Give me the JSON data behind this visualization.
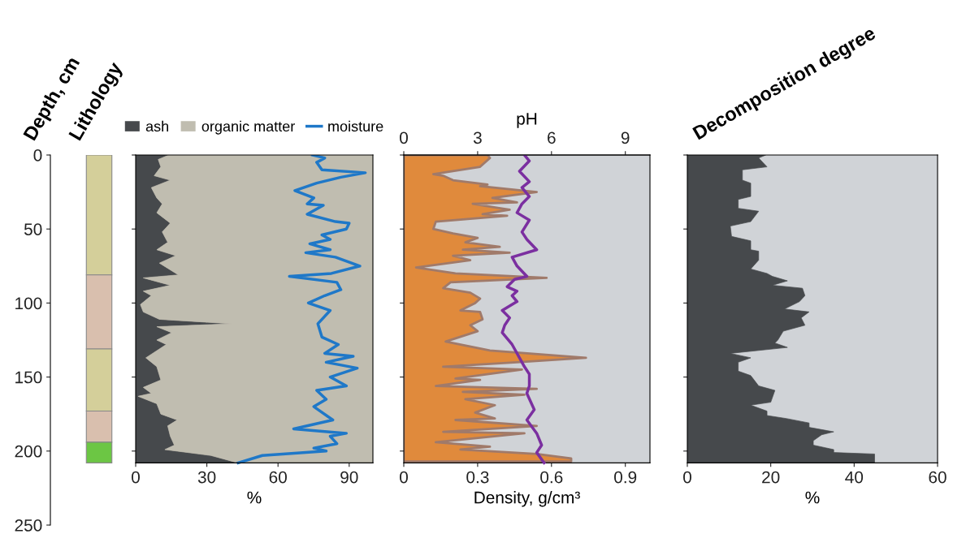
{
  "chart_data": [
    {
      "type": "bar",
      "stacked": true,
      "title": "Lithology",
      "ylabel": "Depth, cm",
      "categories": [
        null
      ],
      "ylim": [
        250,
        0
      ],
      "yticks": [
        0,
        50,
        100,
        150,
        200,
        250
      ],
      "series": [
        {
          "color": "#d4cf9a",
          "values": [
            81
          ]
        },
        {
          "color": "#d9bfae",
          "values": [
            50
          ]
        },
        {
          "color": "#d4cf9a",
          "values": [
            42
          ]
        },
        {
          "color": "#d9bfae",
          "values": [
            21
          ]
        },
        {
          "color": "#6cc644",
          "values": [
            14
          ]
        }
      ]
    },
    {
      "type": "area",
      "orientation": "horizontal",
      "stacked": true,
      "xlabel": "%",
      "xlim": [
        0,
        100
      ],
      "xticks": [
        0,
        30,
        60,
        90
      ],
      "ylim": [
        250,
        0
      ],
      "yticks": [
        {
          "value": 0,
          "label": null
        },
        {
          "value": 50,
          "label": null
        },
        {
          "value": 100,
          "label": null
        },
        {
          "value": 150,
          "label": null
        },
        {
          "value": 200,
          "label": null
        }
      ],
      "tick_labels": "x",
      "legend": "top",
      "series": [
        {
          "name": "ash",
          "color": "#46494c",
          "x": [
            0,
            3,
            8,
            14,
            17,
            22,
            29,
            33,
            39,
            46,
            52,
            59,
            64,
            68,
            73,
            81,
            83,
            88,
            92,
            95,
            101,
            106,
            111,
            114,
            116,
            120,
            125,
            128,
            137,
            143,
            152,
            157,
            161,
            163,
            168,
            175,
            179,
            183,
            190,
            196,
            199,
            203,
            208
          ],
          "values": [
            14,
            9.5,
            10.6,
            7.8,
            14.6,
            6.6,
            8.9,
            11.2,
            8.9,
            14.6,
            11.2,
            13.5,
            8.9,
            16.9,
            10,
            18,
            3.2,
            14.6,
            3.2,
            6.6,
            2,
            3.2,
            10,
            40.3,
            8.9,
            15.2,
            8.9,
            12.9,
            4.3,
            8.9,
            10.6,
            3.2,
            6.6,
            1,
            8.9,
            10.6,
            17.5,
            13.5,
            14.6,
            16.3,
            12.3,
            31.7,
            43.2
          ]
        },
        {
          "name": "organic matter",
          "color": "#c0bdb0",
          "x": [
            0,
            3,
            8,
            14,
            17,
            22,
            29,
            33,
            39,
            46,
            52,
            59,
            64,
            68,
            73,
            81,
            83,
            88,
            92,
            95,
            101,
            106,
            111,
            114,
            116,
            120,
            125,
            128,
            137,
            143,
            152,
            157,
            161,
            163,
            168,
            175,
            179,
            183,
            190,
            196,
            199,
            203,
            208
          ],
          "values": [
            86,
            90.5,
            89.4,
            92.2,
            85.4,
            93.4,
            91.1,
            88.8,
            91.1,
            85.4,
            88.8,
            86.5,
            91.1,
            83.1,
            90,
            82,
            96.8,
            85.4,
            96.8,
            93.4,
            98,
            96.8,
            90,
            59.7,
            91.1,
            84.8,
            91.1,
            87.1,
            95.7,
            91.1,
            89.4,
            96.8,
            93.4,
            99,
            91.1,
            89.4,
            82.5,
            86.5,
            85.4,
            83.7,
            87.7,
            68.3,
            56.8
          ]
        },
        {
          "name": "moisture",
          "type": "line",
          "color": "#1f78c8",
          "x": [
            0,
            2,
            5,
            10,
            12,
            15,
            19,
            24,
            29,
            33,
            34,
            40,
            45,
            46,
            50,
            54,
            57,
            60,
            64,
            66,
            69,
            75,
            80,
            82,
            86,
            91,
            95,
            100,
            105,
            114,
            123,
            128,
            134,
            136,
            140,
            144,
            150,
            156,
            159,
            165,
            170,
            179,
            185,
            188,
            190,
            195,
            198,
            200,
            203,
            208
          ],
          "values": [
            74.5,
            79.7,
            76.3,
            78.5,
            96.8,
            86.5,
            76.3,
            67.1,
            75.1,
            72.3,
            79.1,
            72.3,
            84.2,
            90,
            88.8,
            78.5,
            82,
            73.4,
            82,
            71.7,
            84.2,
            94.5,
            82.5,
            64.8,
            84.8,
            86.5,
            79.7,
            72.8,
            82,
            76.8,
            78.5,
            85.4,
            79.7,
            91.7,
            80.3,
            93.4,
            82,
            88.8,
            76.3,
            80.3,
            75.1,
            83.1,
            66.6,
            88.8,
            82,
            84.8,
            75.1,
            80.3,
            53.4,
            43.2
          ]
        }
      ]
    },
    {
      "type": "area",
      "orientation": "horizontal",
      "xlabel": "Density, g/cm³",
      "xlim": [
        0,
        1
      ],
      "xticks": [
        0,
        0.3,
        0.6,
        0.9
      ],
      "x2label": "pH",
      "x2lim": [
        0,
        10
      ],
      "x2ticks": [
        0,
        3,
        6,
        9
      ],
      "ylim": [
        250,
        0
      ],
      "bands": [
        {
          "axis": "y",
          "from": 0,
          "to": 208,
          "color": "#d0d3d7"
        }
      ],
      "yticks": [
        {
          "value": 0,
          "label": null
        },
        {
          "value": 50,
          "label": null
        },
        {
          "value": 100,
          "label": null
        },
        {
          "value": 150,
          "label": null
        },
        {
          "value": 200,
          "label": null
        }
      ],
      "tick_labels": "x",
      "series": [
        {
          "color": "#e08a3c",
          "x": [
            0,
            2,
            8,
            13,
            14,
            17,
            20,
            21,
            25,
            29,
            32,
            33,
            37,
            40,
            41,
            45,
            50,
            53,
            56,
            59,
            62,
            64,
            66,
            68,
            71,
            76,
            80,
            83,
            86,
            90,
            93,
            97,
            100,
            105,
            106,
            111,
            115,
            119,
            126,
            132,
            137,
            140,
            143,
            145,
            151,
            152,
            156,
            158,
            160,
            162,
            165,
            169,
            174,
            178,
            179,
            183,
            187,
            188,
            194,
            197,
            199,
            202,
            205,
            207
          ],
          "values": [
            0.34,
            0.35,
            0.31,
            0.12,
            0.16,
            0.2,
            0.34,
            0.31,
            0.54,
            0.36,
            0.46,
            0.28,
            0.43,
            0.32,
            0.42,
            0.13,
            0.12,
            0.2,
            0.3,
            0.25,
            0.39,
            0.24,
            0.43,
            0.2,
            0.27,
            0.05,
            0.21,
            0.58,
            0.19,
            0.16,
            0.27,
            0.31,
            0.29,
            0.23,
            0.31,
            0.32,
            0.27,
            0.3,
            0.17,
            0.35,
            0.74,
            0.46,
            0.16,
            0.48,
            0.21,
            0.31,
            0.13,
            0.54,
            0.24,
            0.49,
            0.25,
            0.37,
            0.29,
            0.37,
            0.21,
            0.54,
            0.16,
            0.49,
            0.13,
            0.35,
            0.23,
            0.54,
            0.68,
            0.68
          ]
        },
        {
          "type": "line",
          "axis": "x2",
          "color": "#7b2fa0",
          "x": [
            0,
            4,
            11,
            18,
            22,
            28,
            33,
            39,
            44,
            52,
            57,
            64,
            69,
            75,
            82,
            84,
            89,
            92,
            95,
            99,
            105,
            110,
            115,
            120,
            128,
            137,
            143,
            148,
            156,
            161,
            172,
            179,
            188,
            196,
            201,
            208
          ],
          "values": [
            4.9,
            5.1,
            4.7,
            5.1,
            4.8,
            5.1,
            4.8,
            4.6,
            5.1,
            4.8,
            5.0,
            5.4,
            4.4,
            4.6,
            5.0,
            4.5,
            4.2,
            4.6,
            4.4,
            4.6,
            4.0,
            4.3,
            4.1,
            4.0,
            4.4,
            4.7,
            4.9,
            5.1,
            5.1,
            5.0,
            5.3,
            5.0,
            5.4,
            5.6,
            5.4,
            5.7
          ]
        }
      ]
    },
    {
      "type": "area",
      "orientation": "horizontal",
      "title": "Decomposition degree",
      "xlabel": "%",
      "xlim": [
        0,
        60
      ],
      "xticks": [
        0,
        20,
        40,
        60
      ],
      "ylim": [
        250,
        0
      ],
      "bands": [
        {
          "axis": "y",
          "from": 0,
          "to": 208,
          "color": "#d0d3d7"
        }
      ],
      "yticks": [
        {
          "value": 0,
          "label": null
        },
        {
          "value": 50,
          "label": null
        },
        {
          "value": 100,
          "label": null
        },
        {
          "value": 150,
          "label": null
        },
        {
          "value": 200,
          "label": null
        }
      ],
      "tick_labels": "x",
      "series": [
        {
          "color": "#46494c",
          "x": [
            0,
            2,
            8,
            10,
            17,
            19,
            28,
            30,
            36,
            38,
            45,
            48,
            55,
            58,
            64,
            65,
            71,
            77,
            80,
            82,
            85,
            88,
            90,
            95,
            99,
            104,
            106,
            110,
            115,
            119,
            125,
            127,
            130,
            134,
            137,
            140,
            146,
            149,
            156,
            159,
            167,
            169,
            173,
            176,
            178,
            181,
            184,
            187,
            189,
            193,
            196,
            199,
            201,
            202,
            208
          ],
          "values": [
            18.8,
            17.1,
            19.1,
            13.2,
            13.2,
            15.2,
            15.2,
            12.2,
            12.2,
            17.1,
            15.2,
            10.3,
            10.6,
            15.2,
            15.2,
            17.1,
            17.1,
            15.2,
            19.1,
            20.4,
            24,
            20.4,
            27.6,
            28.2,
            26.9,
            23.3,
            29.2,
            27.3,
            28.2,
            23,
            21.7,
            21,
            24,
            10.3,
            15.2,
            12.2,
            12.2,
            15.2,
            17.1,
            21,
            20,
            15.2,
            19.1,
            19.1,
            23.7,
            29.2,
            29.2,
            35.1,
            32.2,
            30.2,
            30.2,
            35.1,
            35.1,
            44.9,
            44.9
          ]
        }
      ]
    }
  ]
}
